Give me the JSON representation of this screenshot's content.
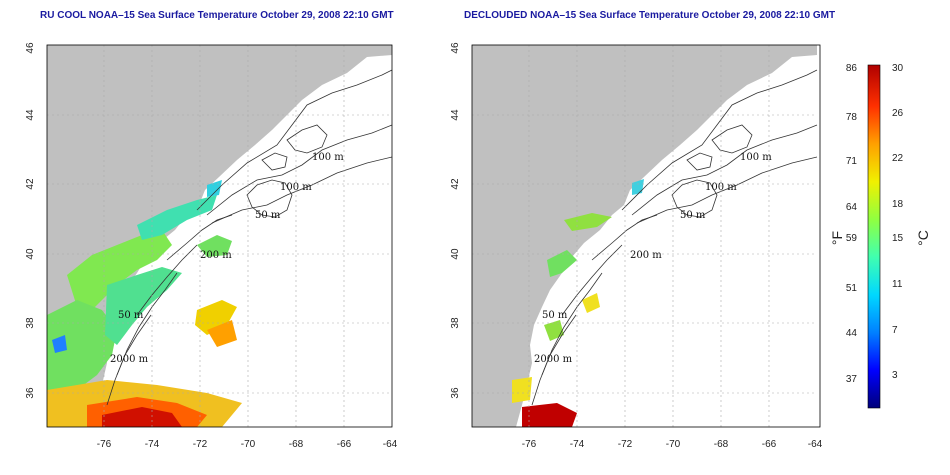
{
  "panels": {
    "left": {
      "title": "RU COOL NOAA–15 Sea Surface Temperature October 29, 2008 22:10 GMT"
    },
    "right": {
      "title": "DECLOUDED NOAA–15 Sea Surface Temperature October 29, 2008 22:10 GMT"
    }
  },
  "axes": {
    "x_ticks": [
      "-76",
      "-74",
      "-72",
      "-70",
      "-68",
      "-66",
      "-64"
    ],
    "y_ticks": [
      "36",
      "38",
      "40",
      "42",
      "44",
      "46"
    ]
  },
  "contour_labels": [
    "100 m",
    "100 m",
    "50 m",
    "200 m",
    "50 m",
    "2000 m"
  ],
  "colorbar": {
    "fahrenheit_ticks": [
      "86",
      "78",
      "71",
      "64",
      "59",
      "51",
      "44",
      "37"
    ],
    "celsius_ticks": [
      "30",
      "26",
      "22",
      "18",
      "15",
      "11",
      "7",
      "3"
    ],
    "unit_f": "°F",
    "unit_c": "°C",
    "colors": [
      "#00007a",
      "#0000ff",
      "#0080ff",
      "#00d8ff",
      "#40ffb0",
      "#90ff40",
      "#f0f000",
      "#ffa000",
      "#ff3000",
      "#b00000"
    ]
  },
  "colors": {
    "land": "#c0c0c0",
    "ocean": "#ffffff",
    "contour": "#333333",
    "grid": "#aaaaaa",
    "title": "#1a1aa0"
  }
}
